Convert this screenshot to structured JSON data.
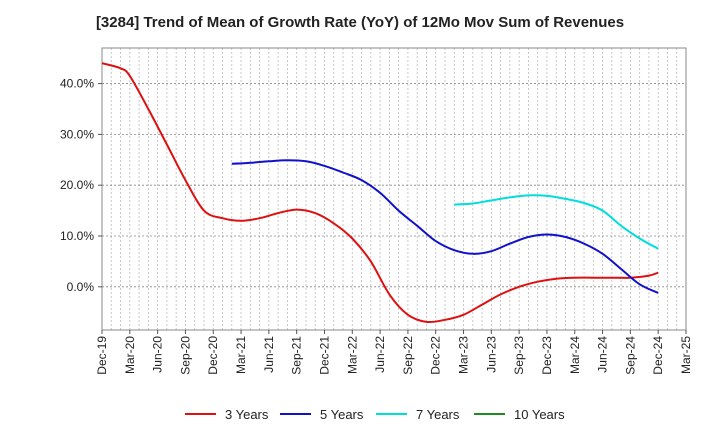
{
  "chart_data": {
    "type": "line",
    "title": "[3284]  Trend of Mean of Growth Rate (YoY) of 12Mo Mov Sum of Revenues",
    "xlabel": "",
    "ylabel": "",
    "ylim": [
      -8.5,
      47
    ],
    "yticks": [
      0,
      10,
      20,
      30,
      40
    ],
    "ytick_labels": [
      "0.0%",
      "10.0%",
      "20.0%",
      "30.0%",
      "40.0%"
    ],
    "x_start": "Dec-19",
    "x_end": "Mar-25",
    "x_tick_labels": [
      "Dec-19",
      "Mar-20",
      "Jun-20",
      "Sep-20",
      "Dec-20",
      "Mar-21",
      "Jun-21",
      "Sep-21",
      "Dec-21",
      "Mar-22",
      "Jun-22",
      "Sep-22",
      "Dec-22",
      "Mar-23",
      "Jun-23",
      "Sep-23",
      "Dec-23",
      "Mar-24",
      "Jun-24",
      "Sep-24",
      "Dec-24",
      "Mar-25"
    ],
    "grid": true,
    "legend_position": "bottom",
    "series": [
      {
        "name": "3 Years",
        "color": "#dd1111",
        "x": [
          "Dec-19",
          "Feb-20",
          "Mar-20",
          "May-20",
          "Jul-20",
          "Sep-20",
          "Nov-20",
          "Jan-21",
          "Mar-21",
          "May-21",
          "Jul-21",
          "Sep-21",
          "Nov-21",
          "Jan-22",
          "Mar-22",
          "May-22",
          "Jul-22",
          "Sep-22",
          "Nov-22",
          "Jan-23",
          "Mar-23",
          "May-23",
          "Jul-23",
          "Sep-23",
          "Nov-23",
          "Jan-24",
          "Mar-24",
          "May-24",
          "Jul-24",
          "Sep-24",
          "Nov-24",
          "Dec-24"
        ],
        "values": [
          44.0,
          43.0,
          41.5,
          35.0,
          28.0,
          21.0,
          15.0,
          13.5,
          13.0,
          13.5,
          14.5,
          15.2,
          14.5,
          12.5,
          9.5,
          5.0,
          -1.5,
          -5.5,
          -6.9,
          -6.5,
          -5.5,
          -3.5,
          -1.5,
          0.0,
          1.0,
          1.6,
          1.8,
          1.8,
          1.8,
          1.8,
          2.2,
          2.8
        ]
      },
      {
        "name": "5 Years",
        "color": "#1111cc",
        "x": [
          "Feb-21",
          "Apr-21",
          "Jun-21",
          "Aug-21",
          "Oct-21",
          "Dec-21",
          "Feb-22",
          "Apr-22",
          "Jun-22",
          "Aug-22",
          "Oct-22",
          "Dec-22",
          "Feb-23",
          "Apr-23",
          "Jun-23",
          "Aug-23",
          "Oct-23",
          "Dec-23",
          "Feb-24",
          "Apr-24",
          "Jun-24",
          "Aug-24",
          "Oct-24",
          "Dec-24"
        ],
        "values": [
          24.2,
          24.4,
          24.7,
          24.9,
          24.7,
          23.8,
          22.5,
          21.0,
          18.5,
          15.0,
          12.0,
          9.0,
          7.2,
          6.5,
          7.0,
          8.5,
          9.8,
          10.3,
          9.8,
          8.5,
          6.5,
          3.5,
          0.5,
          -1.2
        ]
      },
      {
        "name": "7 Years",
        "color": "#00dddd",
        "x": [
          "Feb-23",
          "Apr-23",
          "Jun-23",
          "Aug-23",
          "Oct-23",
          "Dec-23",
          "Feb-24",
          "Apr-24",
          "Jun-24",
          "Aug-24",
          "Oct-24",
          "Dec-24"
        ],
        "values": [
          16.2,
          16.4,
          17.0,
          17.6,
          18.0,
          17.9,
          17.3,
          16.5,
          15.0,
          12.0,
          9.5,
          7.5
        ]
      },
      {
        "name": "10 Years",
        "color": "#228822",
        "x": [],
        "values": []
      }
    ]
  }
}
